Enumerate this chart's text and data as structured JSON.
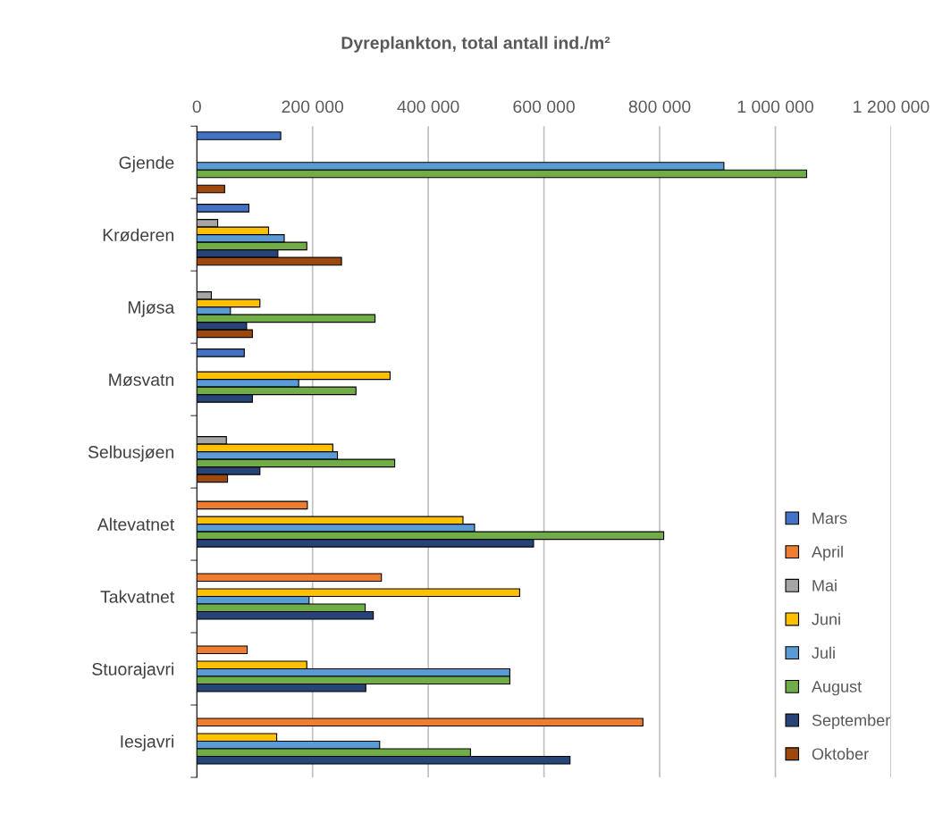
{
  "chart_data": {
    "type": "bar",
    "orientation": "horizontal",
    "title": "Dyreplankton, total antall ind./m²",
    "categories": [
      "Gjende",
      "Krøderen",
      "Mjøsa",
      "Møsvatn",
      "Selbusjøen",
      "Altevatnet",
      "Takvatnet",
      "Stuorajavri",
      "Iesjavri"
    ],
    "series": [
      {
        "name": "Mars",
        "color": "#4472c4",
        "values": [
          145000,
          90000,
          null,
          82000,
          null,
          null,
          null,
          null,
          null
        ]
      },
      {
        "name": "April",
        "color": "#ed7d31",
        "values": [
          null,
          null,
          null,
          null,
          null,
          191000,
          319000,
          87000,
          771000
        ]
      },
      {
        "name": "Mai",
        "color": "#a5a5a5",
        "values": [
          null,
          36000,
          25000,
          null,
          51000,
          null,
          null,
          null,
          null
        ]
      },
      {
        "name": "Juni",
        "color": "#ffc000",
        "values": [
          null,
          124000,
          109000,
          334000,
          235000,
          460000,
          558000,
          190000,
          138000
        ]
      },
      {
        "name": "Juli",
        "color": "#5b9bd5",
        "values": [
          911000,
          151000,
          58000,
          176000,
          243000,
          480000,
          194000,
          541000,
          316000
        ]
      },
      {
        "name": "August",
        "color": "#70ad47",
        "values": [
          1054000,
          190000,
          308000,
          275000,
          342000,
          807000,
          291000,
          541000,
          473000
        ]
      },
      {
        "name": "September",
        "color": "#264478",
        "values": [
          null,
          140000,
          86000,
          96000,
          109000,
          582000,
          305000,
          292000,
          645000
        ]
      },
      {
        "name": "Oktober",
        "color": "#9e480e",
        "values": [
          48000,
          250000,
          96000,
          null,
          53000,
          null,
          null,
          null,
          null
        ]
      }
    ],
    "xlim": [
      0,
      1200000
    ],
    "xticks": [
      0,
      {
        "value": 200000,
        "label": "200 000"
      },
      {
        "value": 400000,
        "label": "400 000"
      },
      {
        "value": 600000,
        "label": "600 000"
      },
      {
        "value": 800000,
        "label": "800 000"
      },
      {
        "value": 1000000,
        "label": "1 000 000"
      },
      {
        "value": 1200000,
        "label": "1 200 000"
      }
    ],
    "grid": "x",
    "legend": "bottom right"
  }
}
